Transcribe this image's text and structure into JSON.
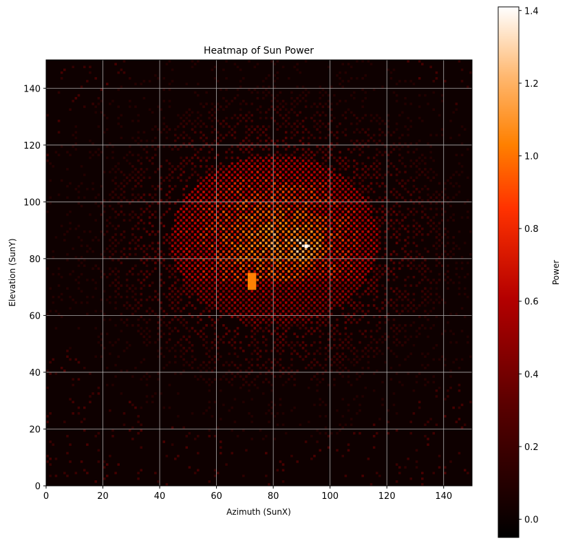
{
  "chart_data": {
    "type": "heatmap",
    "title": "Heatmap of Sun Power",
    "xlabel": "Azimuth (SunX)",
    "ylabel": "Elevation (SunY)",
    "xlim": [
      0,
      150
    ],
    "ylim": [
      0,
      150
    ],
    "x_ticks": [
      "0",
      "20",
      "40",
      "60",
      "80",
      "100",
      "120",
      "140"
    ],
    "y_ticks": [
      "0",
      "20",
      "40",
      "60",
      "80",
      "100",
      "120",
      "140"
    ],
    "grid": true,
    "colormap": "gist_heat",
    "colorbar": {
      "label": "Power",
      "range": [
        -0.05,
        1.41
      ],
      "ticks": [
        "0.0",
        "0.2",
        "0.4",
        "0.6",
        "0.8",
        "1.0",
        "1.2",
        "1.4"
      ]
    },
    "background_value": 0.0,
    "peak": {
      "x": 91,
      "y": 84,
      "value": 1.41
    },
    "hotspot": {
      "x": 72,
      "y": 72,
      "value": 1.05
    }
  }
}
